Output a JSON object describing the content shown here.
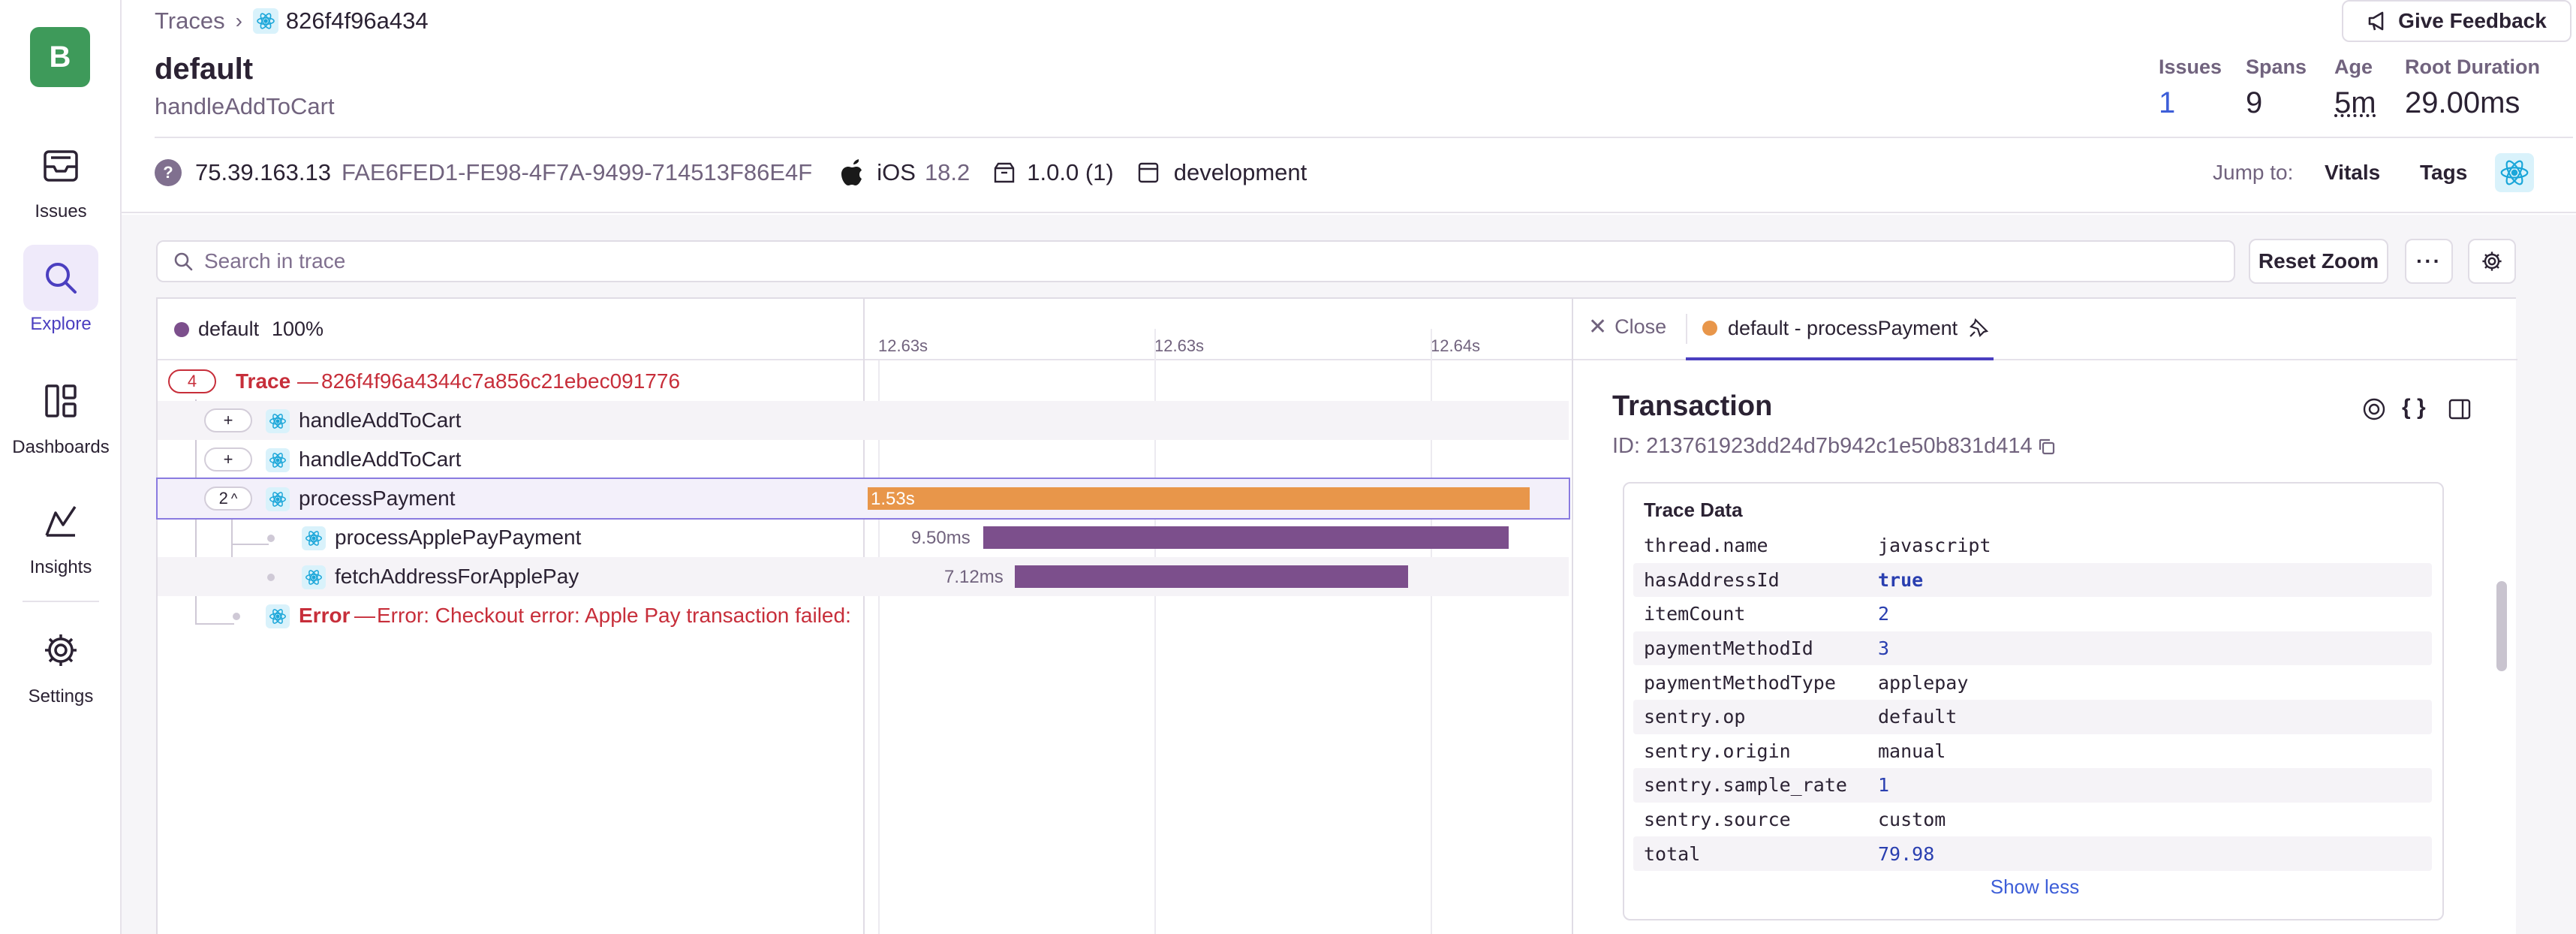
{
  "sidebar": {
    "org_initial": "B",
    "items": [
      {
        "label": "Issues"
      },
      {
        "label": "Explore"
      },
      {
        "label": "Dashboards"
      },
      {
        "label": "Insights"
      },
      {
        "label": "Settings"
      }
    ]
  },
  "header": {
    "breadcrumb_root": "Traces",
    "breadcrumb_current": "826f4f96a434",
    "title": "default",
    "subtitle": "handleAddToCart",
    "feedback_label": "Give Feedback",
    "stats": [
      {
        "label": "Issues",
        "value": "1"
      },
      {
        "label": "Spans",
        "value": "9"
      },
      {
        "label": "Age",
        "value": "5m"
      },
      {
        "label": "Root Duration",
        "value": "29.00ms"
      }
    ],
    "ip": "75.39.163.13",
    "device_id": "FAE6FED1-FE98-4F7A-9499-714513F86E4F",
    "os": "iOS",
    "os_version": "18.2",
    "release": "1.0.0 (1)",
    "environment": "development",
    "jump_to_label": "Jump to:",
    "jump_vitals": "Vitals",
    "jump_tags": "Tags"
  },
  "toolbar": {
    "search_placeholder": "Search in trace",
    "reset_zoom": "Reset Zoom",
    "more": "···"
  },
  "trace": {
    "legend_name": "default",
    "legend_pct": "100%",
    "ticks": [
      "12.63s",
      "12.63s",
      "12.64s"
    ],
    "root_count": "4",
    "root_label": "Trace",
    "root_dash": "—",
    "root_id": "826f4f96a4344c7a856c21ebec091776",
    "rows": [
      {
        "name": "handleAddToCart",
        "toggle": "+"
      },
      {
        "name": "handleAddToCart",
        "toggle": "+"
      },
      {
        "name": "processPayment",
        "toggle": "2",
        "duration": "1.53s"
      },
      {
        "name": "processApplePayPayment",
        "duration": "9.50ms"
      },
      {
        "name": "fetchAddressForApplePay",
        "duration": "7.12ms"
      }
    ],
    "error_label": "Error",
    "error_dash": "—",
    "error_text": "Error: Checkout error: Apple Pay transaction failed: SI"
  },
  "details": {
    "close_label": "Close",
    "tab_label": "default - processPayment",
    "heading": "Transaction",
    "id_text": "ID: 213761923dd24d7b942c1e50b831d414",
    "section_title": "Trace Data",
    "kv": [
      {
        "k": "thread.name",
        "v": "javascript"
      },
      {
        "k": "hasAddressId",
        "v": "true"
      },
      {
        "k": "itemCount",
        "v": "2"
      },
      {
        "k": "paymentMethodId",
        "v": "3"
      },
      {
        "k": "paymentMethodType",
        "v": "applepay"
      },
      {
        "k": "sentry.op",
        "v": "default"
      },
      {
        "k": "sentry.origin",
        "v": "manual"
      },
      {
        "k": "sentry.sample_rate",
        "v": "1"
      },
      {
        "k": "sentry.source",
        "v": "custom"
      },
      {
        "k": "total",
        "v": "79.98"
      }
    ],
    "show_less": "Show less"
  },
  "colors": {
    "accent": "#4b3fc0",
    "link": "#3d5ed8",
    "error": "#c72e3a",
    "bar_orange": "#e8964a",
    "bar_purple": "#7c4f8c",
    "legend_dot": "#7c4f8c",
    "tab_dot": "#e8964a",
    "org_green": "#3e9a5a"
  }
}
